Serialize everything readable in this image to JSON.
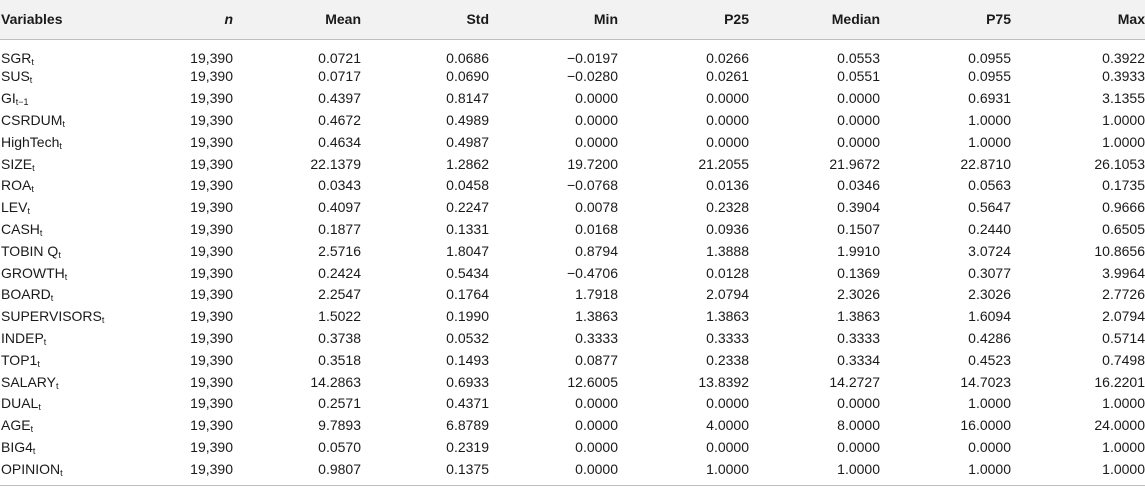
{
  "table": {
    "headers": [
      "Variables",
      "n",
      "Mean",
      "Std",
      "Min",
      "P25",
      "Median",
      "P75",
      "Max"
    ],
    "rows": [
      {
        "var": "SGR",
        "sub": "t",
        "n": "19,390",
        "mean": "0.0721",
        "std": "0.0686",
        "min": "−0.0197",
        "p25": "0.0266",
        "median": "0.0553",
        "p75": "0.0955",
        "max": "0.3922"
      },
      {
        "var": "SUS",
        "sub": "t",
        "n": "19,390",
        "mean": "0.0717",
        "std": "0.0690",
        "min": "−0.0280",
        "p25": "0.0261",
        "median": "0.0551",
        "p75": "0.0955",
        "max": "0.3933"
      },
      {
        "var": "GI",
        "sub": "t−1",
        "n": "19,390",
        "mean": "0.4397",
        "std": "0.8147",
        "min": "0.0000",
        "p25": "0.0000",
        "median": "0.0000",
        "p75": "0.6931",
        "max": "3.1355"
      },
      {
        "var": "CSRDUM",
        "sub": "t",
        "n": "19,390",
        "mean": "0.4672",
        "std": "0.4989",
        "min": "0.0000",
        "p25": "0.0000",
        "median": "0.0000",
        "p75": "1.0000",
        "max": "1.0000"
      },
      {
        "var": "HighTech",
        "sub": "t",
        "n": "19,390",
        "mean": "0.4634",
        "std": "0.4987",
        "min": "0.0000",
        "p25": "0.0000",
        "median": "0.0000",
        "p75": "1.0000",
        "max": "1.0000"
      },
      {
        "var": "SIZE",
        "sub": "t",
        "n": "19,390",
        "mean": "22.1379",
        "std": "1.2862",
        "min": "19.7200",
        "p25": "21.2055",
        "median": "21.9672",
        "p75": "22.8710",
        "max": "26.1053"
      },
      {
        "var": "ROA",
        "sub": "t",
        "n": "19,390",
        "mean": "0.0343",
        "std": "0.0458",
        "min": "−0.0768",
        "p25": "0.0136",
        "median": "0.0346",
        "p75": "0.0563",
        "max": "0.1735"
      },
      {
        "var": "LEV",
        "sub": "t",
        "n": "19,390",
        "mean": "0.4097",
        "std": "0.2247",
        "min": "0.0078",
        "p25": "0.2328",
        "median": "0.3904",
        "p75": "0.5647",
        "max": "0.9666"
      },
      {
        "var": "CASH",
        "sub": "t",
        "n": "19,390",
        "mean": "0.1877",
        "std": "0.1331",
        "min": "0.0168",
        "p25": "0.0936",
        "median": "0.1507",
        "p75": "0.2440",
        "max": "0.6505"
      },
      {
        "var": "TOBIN Q",
        "sub": "t",
        "n": "19,390",
        "mean": "2.5716",
        "std": "1.8047",
        "min": "0.8794",
        "p25": "1.3888",
        "median": "1.9910",
        "p75": "3.0724",
        "max": "10.8656"
      },
      {
        "var": "GROWTH",
        "sub": "t",
        "n": "19,390",
        "mean": "0.2424",
        "std": "0.5434",
        "min": "−0.4706",
        "p25": "0.0128",
        "median": "0.1369",
        "p75": "0.3077",
        "max": "3.9964"
      },
      {
        "var": "BOARD",
        "sub": "t",
        "n": "19,390",
        "mean": "2.2547",
        "std": "0.1764",
        "min": "1.7918",
        "p25": "2.0794",
        "median": "2.3026",
        "p75": "2.3026",
        "max": "2.7726"
      },
      {
        "var": "SUPERVISORS",
        "sub": "t",
        "n": "19,390",
        "mean": "1.5022",
        "std": "0.1990",
        "min": "1.3863",
        "p25": "1.3863",
        "median": "1.3863",
        "p75": "1.6094",
        "max": "2.0794"
      },
      {
        "var": "INDEP",
        "sub": "t",
        "n": "19,390",
        "mean": "0.3738",
        "std": "0.0532",
        "min": "0.3333",
        "p25": "0.3333",
        "median": "0.3333",
        "p75": "0.4286",
        "max": "0.5714"
      },
      {
        "var": "TOP1",
        "sub": "t",
        "n": "19,390",
        "mean": "0.3518",
        "std": "0.1493",
        "min": "0.0877",
        "p25": "0.2338",
        "median": "0.3334",
        "p75": "0.4523",
        "max": "0.7498"
      },
      {
        "var": "SALARY",
        "sub": "t",
        "n": "19,390",
        "mean": "14.2863",
        "std": "0.6933",
        "min": "12.6005",
        "p25": "13.8392",
        "median": "14.2727",
        "p75": "14.7023",
        "max": "16.2201"
      },
      {
        "var": "DUAL",
        "sub": "t",
        "n": "19,390",
        "mean": "0.2571",
        "std": "0.4371",
        "min": "0.0000",
        "p25": "0.0000",
        "median": "0.0000",
        "p75": "1.0000",
        "max": "1.0000"
      },
      {
        "var": "AGE",
        "sub": "t",
        "n": "19,390",
        "mean": "9.7893",
        "std": "6.8789",
        "min": "0.0000",
        "p25": "4.0000",
        "median": "8.0000",
        "p75": "16.0000",
        "max": "24.0000"
      },
      {
        "var": "BIG4",
        "sub": "t",
        "n": "19,390",
        "mean": "0.0570",
        "std": "0.2319",
        "min": "0.0000",
        "p25": "0.0000",
        "median": "0.0000",
        "p75": "0.0000",
        "max": "1.0000"
      },
      {
        "var": "OPINION",
        "sub": "t",
        "n": "19,390",
        "mean": "0.9807",
        "std": "0.1375",
        "min": "0.0000",
        "p25": "1.0000",
        "median": "1.0000",
        "p75": "1.0000",
        "max": "1.0000"
      }
    ]
  }
}
